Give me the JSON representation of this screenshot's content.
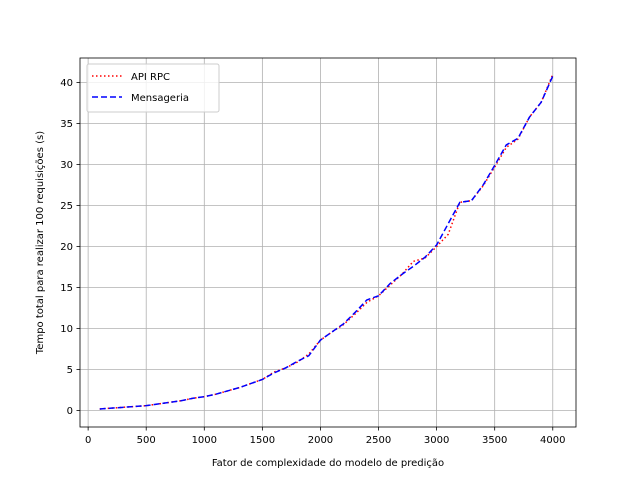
{
  "chart_data": {
    "type": "line",
    "title": "",
    "xlabel": "Fator de complexidade do modelo de predição",
    "ylabel": "Tempo total para realizar 100 requisições (s)",
    "xlim": [
      -70,
      4200
    ],
    "ylim": [
      -2,
      43
    ],
    "xticks": [
      0,
      500,
      1000,
      1500,
      2000,
      2500,
      3000,
      3500,
      4000
    ],
    "yticks": [
      0,
      5,
      10,
      15,
      20,
      25,
      30,
      35,
      40
    ],
    "grid": true,
    "legend_position": "top-left",
    "x": [
      100,
      200,
      300,
      400,
      500,
      600,
      700,
      800,
      900,
      1000,
      1100,
      1200,
      1300,
      1400,
      1500,
      1600,
      1700,
      1800,
      1900,
      2000,
      2100,
      2200,
      2300,
      2400,
      2500,
      2600,
      2700,
      2800,
      2900,
      3000,
      3100,
      3200,
      3300,
      3400,
      3500,
      3600,
      3700,
      3800,
      3900,
      4000
    ],
    "series": [
      {
        "name": "API RPC",
        "color": "#ff0000",
        "dash": "dotted",
        "values": [
          0.2,
          0.3,
          0.4,
          0.5,
          0.6,
          0.8,
          1.0,
          1.2,
          1.5,
          1.7,
          2.0,
          2.4,
          2.8,
          3.3,
          3.8,
          4.7,
          5.2,
          5.9,
          6.9,
          8.6,
          9.6,
          10.5,
          11.8,
          13.2,
          14.0,
          15.3,
          16.6,
          18.2,
          18.6,
          20.0,
          21.5,
          25.4,
          25.6,
          27.4,
          29.7,
          32.1,
          33.1,
          35.8,
          37.6,
          41.0
        ]
      },
      {
        "name": "Mensageria",
        "color": "#0000ff",
        "dash": "dashed",
        "values": [
          0.2,
          0.3,
          0.4,
          0.5,
          0.6,
          0.8,
          1.0,
          1.2,
          1.5,
          1.7,
          2.0,
          2.4,
          2.8,
          3.3,
          3.8,
          4.6,
          5.2,
          6.0,
          6.7,
          8.6,
          9.6,
          10.6,
          12.0,
          13.5,
          14.0,
          15.5,
          16.6,
          17.6,
          18.7,
          20.2,
          22.8,
          25.4,
          25.6,
          27.5,
          29.9,
          32.4,
          33.2,
          35.8,
          37.6,
          40.8
        ]
      }
    ]
  }
}
